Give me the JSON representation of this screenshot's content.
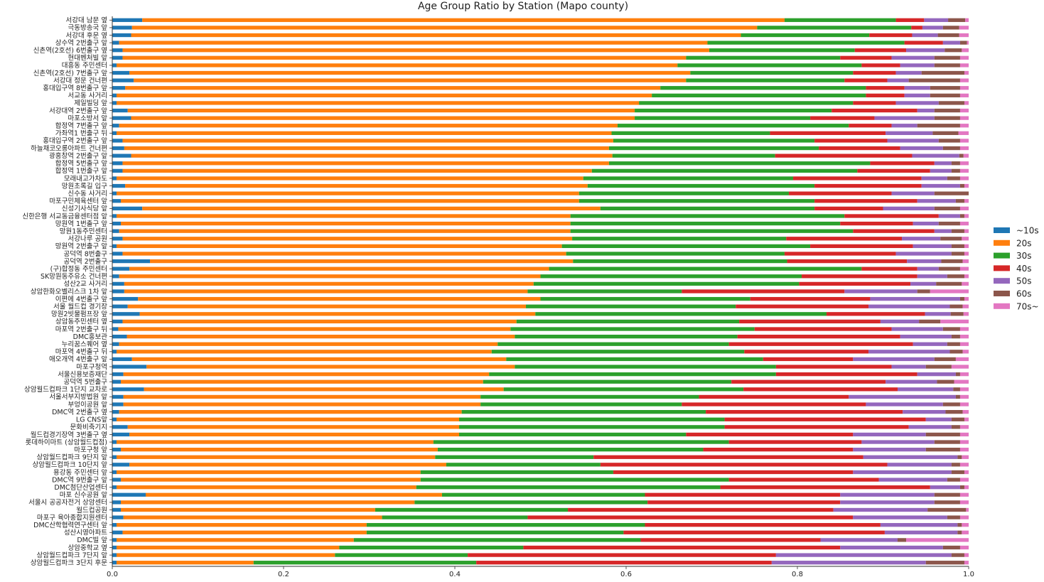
{
  "chart_data": {
    "type": "bar",
    "orientation": "horizontal",
    "stacked": true,
    "title": "Age Group Ratio by Station (Mapo county)",
    "xlabel": "",
    "ylabel": "",
    "xlim": [
      0,
      1.0
    ],
    "xticks": [
      "0.0",
      "0.2",
      "0.4",
      "0.6",
      "0.8",
      "1.0"
    ],
    "grid": false,
    "legend_position": "right",
    "series": [
      {
        "name": "~10s",
        "color": "#1f77b4"
      },
      {
        "name": "20s",
        "color": "#ff7f0e"
      },
      {
        "name": "30s",
        "color": "#2ca02c"
      },
      {
        "name": "40s",
        "color": "#d62728"
      },
      {
        "name": "50s",
        "color": "#9467bd"
      },
      {
        "name": "60s",
        "color": "#8c564b"
      },
      {
        "name": "70s~",
        "color": "#e377c2"
      }
    ],
    "categories": [
      "서강대 남문 옆",
      "극동방송국 앞",
      "서강대 후문 옆",
      "상수역 2번출구 앞",
      "신촌역(2호선) 6번출구 옆",
      "현대벤처빌 앞",
      "대흥동 주민센터",
      "신촌역(2호선) 7번출구 앞",
      "서강대 정문 건너편",
      "홍대입구역 8번출구 앞",
      "서교동 사거리",
      "제일빌딩 앞",
      "서강대역 2번출구 앞",
      "마포소방서 앞",
      "합정역 7번출구 앞",
      "가좌역1 번출구 뒤",
      "홍대입구역 2번출구 앞",
      "하늘채코오롱아파트 건너편",
      "광흥창역 2번출구 앞",
      "합정역 5번출구 앞",
      "합정역 1번출구 앞",
      "모래내고가차도",
      "망원초록길 입구",
      "신수동 사거리",
      "마포구민체육센터 앞",
      "신성기사식당 앞",
      "신한은행 서교동금융센터점 앞",
      "망원역 1번출구 앞",
      "망원1동주민센터",
      "서강나루 공원",
      "망원역 2번출구 앞",
      "공덕역 8번출구",
      "공덕역 2번출구",
      "(구)합정동 주민센터",
      "SK망원동주유소 건너편",
      "성산2교 사거리",
      "상암한화오벨리스크 1차 앞",
      "이편에 4번출구 앞",
      "서울 월드컵 경기장",
      "망원2빗물펌프장 앞",
      "상암동주민센터 옆",
      "마포역 2번출구 뒤",
      "DMC홍보관",
      "누리꿈스퀘어 옆",
      "마포역 4번출구 뒤",
      "애오개역 4번출구 앞",
      "마포구청역",
      "서울신용보증재단",
      "공덕역 5번출구",
      "상암월드컵파크 1단지 교차로",
      "서울서부지방법원 앞",
      "부엉이공원 앞",
      "DMC역 2번출구 옆",
      "LG CNS앞",
      "문화비축기지",
      "월드컵경기장역 3번출구 옆",
      "롯데하이마트 (상암월드컵점)",
      "마포구청 앞",
      "상암월드컵파크 9단지 앞",
      "상암월드컵파크 10단지 앞",
      "용강동 주민센터 앞",
      "DMC역 9번출구 앞",
      "DMC첨단산업센터",
      "마포 신수공원 앞",
      "서울시 공공자전거 상암센터",
      "월드컵공원",
      "마포구 육아종합지원센터",
      "DMC산학협력연구센터 앞",
      "성산시영아파트",
      "DMC빌 앞",
      "상암중학교 옆",
      "상암월드컵파크 7단지 앞",
      "상암월드컵파크 3단지 후문"
    ],
    "values": [
      [
        0.035,
        0.75,
        0.13,
        0.033,
        0.028,
        0.02,
        0.004
      ],
      [
        0.023,
        0.73,
        0.18,
        0.013,
        0.024,
        0.019,
        0.011
      ],
      [
        0.022,
        0.712,
        0.15,
        0.05,
        0.03,
        0.025,
        0.011
      ],
      [
        0.008,
        0.687,
        0.23,
        0.045,
        0.02,
        0.008,
        0.002
      ],
      [
        0.012,
        0.685,
        0.17,
        0.06,
        0.045,
        0.02,
        0.008
      ],
      [
        0.012,
        0.658,
        0.18,
        0.06,
        0.05,
        0.03,
        0.01
      ],
      [
        0.005,
        0.655,
        0.215,
        0.045,
        0.04,
        0.03,
        0.01
      ],
      [
        0.02,
        0.655,
        0.19,
        0.05,
        0.03,
        0.05,
        0.005
      ],
      [
        0.025,
        0.645,
        0.185,
        0.05,
        0.025,
        0.06,
        0.01
      ],
      [
        0.015,
        0.625,
        0.24,
        0.045,
        0.03,
        0.035,
        0.01
      ],
      [
        0.005,
        0.625,
        0.25,
        0.045,
        0.03,
        0.035,
        0.01
      ],
      [
        0.005,
        0.61,
        0.25,
        0.05,
        0.05,
        0.03,
        0.005
      ],
      [
        0.018,
        0.592,
        0.23,
        0.1,
        0.02,
        0.03,
        0.01
      ],
      [
        0.022,
        0.588,
        0.205,
        0.075,
        0.07,
        0.03,
        0.01
      ],
      [
        0.008,
        0.582,
        0.27,
        0.05,
        0.03,
        0.05,
        0.01
      ],
      [
        0.005,
        0.578,
        0.185,
        0.135,
        0.055,
        0.03,
        0.012
      ],
      [
        0.012,
        0.573,
        0.235,
        0.085,
        0.06,
        0.025,
        0.01
      ],
      [
        0.014,
        0.566,
        0.245,
        0.095,
        0.05,
        0.02,
        0.01
      ],
      [
        0.022,
        0.562,
        0.19,
        0.16,
        0.055,
        0.005,
        0.006
      ],
      [
        0.012,
        0.568,
        0.305,
        0.075,
        0.02,
        0.01,
        0.01
      ],
      [
        0.012,
        0.548,
        0.31,
        0.085,
        0.025,
        0.01,
        0.01
      ],
      [
        0.005,
        0.545,
        0.245,
        0.15,
        0.03,
        0.015,
        0.01
      ],
      [
        0.015,
        0.54,
        0.265,
        0.125,
        0.045,
        0.005,
        0.005
      ],
      [
        0.005,
        0.54,
        0.245,
        0.12,
        0.05,
        0.04,
        0.0
      ],
      [
        0.01,
        0.535,
        0.275,
        0.12,
        0.045,
        0.01,
        0.005
      ],
      [
        0.035,
        0.535,
        0.25,
        0.08,
        0.06,
        0.03,
        0.01
      ],
      [
        0.005,
        0.53,
        0.32,
        0.11,
        0.025,
        0.005,
        0.005
      ],
      [
        0.01,
        0.525,
        0.315,
        0.085,
        0.03,
        0.025,
        0.01
      ],
      [
        0.008,
        0.527,
        0.33,
        0.095,
        0.02,
        0.015,
        0.005
      ],
      [
        0.012,
        0.525,
        0.25,
        0.135,
        0.045,
        0.025,
        0.008
      ],
      [
        0.005,
        0.52,
        0.29,
        0.12,
        0.045,
        0.015,
        0.005
      ],
      [
        0.012,
        0.518,
        0.255,
        0.13,
        0.065,
        0.015,
        0.005
      ],
      [
        0.044,
        0.494,
        0.25,
        0.14,
        0.04,
        0.025,
        0.007
      ],
      [
        0.02,
        0.49,
        0.365,
        0.065,
        0.025,
        0.025,
        0.01
      ],
      [
        0.008,
        0.492,
        0.305,
        0.135,
        0.035,
        0.02,
        0.005
      ],
      [
        0.014,
        0.478,
        0.31,
        0.13,
        0.03,
        0.03,
        0.008
      ],
      [
        0.014,
        0.471,
        0.18,
        0.19,
        0.085,
        0.015,
        0.045
      ],
      [
        0.03,
        0.47,
        0.245,
        0.14,
        0.105,
        0.005,
        0.005
      ],
      [
        0.018,
        0.465,
        0.245,
        0.155,
        0.095,
        0.015,
        0.007
      ],
      [
        0.032,
        0.462,
        0.34,
        0.115,
        0.03,
        0.015,
        0.006
      ],
      [
        0.012,
        0.46,
        0.26,
        0.165,
        0.045,
        0.025,
        0.033
      ],
      [
        0.007,
        0.458,
        0.285,
        0.16,
        0.06,
        0.02,
        0.01
      ],
      [
        0.017,
        0.453,
        0.26,
        0.19,
        0.06,
        0.01,
        0.01
      ],
      [
        0.008,
        0.442,
        0.27,
        0.215,
        0.04,
        0.015,
        0.01
      ],
      [
        0.005,
        0.438,
        0.295,
        0.145,
        0.095,
        0.015,
        0.007
      ],
      [
        0.023,
        0.437,
        0.3,
        0.105,
        0.095,
        0.025,
        0.015
      ],
      [
        0.04,
        0.43,
        0.305,
        0.135,
        0.04,
        0.03,
        0.02
      ],
      [
        0.013,
        0.427,
        0.335,
        0.165,
        0.045,
        0.005,
        0.01
      ],
      [
        0.01,
        0.423,
        0.29,
        0.18,
        0.06,
        0.02,
        0.017
      ],
      [
        0.037,
        0.42,
        0.28,
        0.18,
        0.065,
        0.008,
        0.01
      ],
      [
        0.013,
        0.417,
        0.255,
        0.175,
        0.125,
        0.005,
        0.01
      ],
      [
        0.013,
        0.417,
        0.235,
        0.215,
        0.09,
        0.02,
        0.01
      ],
      [
        0.008,
        0.4,
        0.285,
        0.23,
        0.05,
        0.02,
        0.007
      ],
      [
        0.005,
        0.4,
        0.31,
        0.235,
        0.03,
        0.015,
        0.005
      ],
      [
        0.018,
        0.387,
        0.31,
        0.215,
        0.05,
        0.01,
        0.01
      ],
      [
        0.02,
        0.385,
        0.265,
        0.195,
        0.085,
        0.04,
        0.01
      ],
      [
        0.005,
        0.37,
        0.345,
        0.155,
        0.085,
        0.03,
        0.01
      ],
      [
        0.01,
        0.37,
        0.31,
        0.175,
        0.085,
        0.04,
        0.01
      ],
      [
        0.005,
        0.372,
        0.185,
        0.315,
        0.11,
        0.005,
        0.008
      ],
      [
        0.02,
        0.37,
        0.18,
        0.335,
        0.075,
        0.01,
        0.01
      ],
      [
        0.005,
        0.355,
        0.225,
        0.28,
        0.115,
        0.015,
        0.005
      ],
      [
        0.01,
        0.35,
        0.36,
        0.175,
        0.08,
        0.015,
        0.01
      ],
      [
        0.005,
        0.35,
        0.355,
        0.245,
        0.035,
        0.005,
        0.005
      ],
      [
        0.039,
        0.346,
        0.237,
        0.228,
        0.11,
        0.03,
        0.01
      ],
      [
        0.01,
        0.343,
        0.272,
        0.225,
        0.11,
        0.03,
        0.01
      ],
      [
        0.01,
        0.297,
        0.225,
        0.31,
        0.11,
        0.045,
        0.003
      ],
      [
        0.013,
        0.302,
        0.17,
        0.38,
        0.11,
        0.015,
        0.01
      ],
      [
        0.005,
        0.292,
        0.325,
        0.275,
        0.09,
        0.005,
        0.008
      ],
      [
        0.012,
        0.285,
        0.3,
        0.305,
        0.085,
        0.005,
        0.008
      ],
      [
        0.005,
        0.277,
        0.335,
        0.21,
        0.09,
        0.01,
        0.073
      ],
      [
        0.005,
        0.26,
        0.215,
        0.37,
        0.12,
        0.02,
        0.01
      ],
      [
        0.005,
        0.255,
        0.155,
        0.36,
        0.205,
        0.015,
        0.01
      ],
      [
        0.005,
        0.16,
        0.26,
        0.345,
        0.18,
        0.045,
        0.005
      ]
    ]
  }
}
